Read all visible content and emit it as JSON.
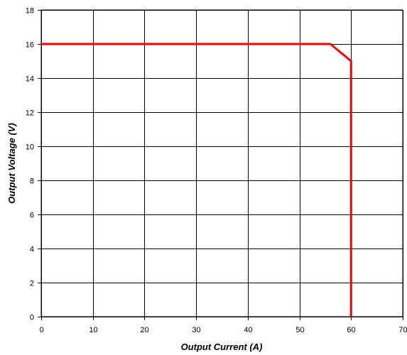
{
  "chart_data": {
    "type": "line",
    "title": "",
    "xlabel": "Output Current (A)",
    "ylabel": "Output Voltage (V)",
    "xlim": [
      0,
      70
    ],
    "ylim": [
      0,
      18
    ],
    "x_ticks": [
      0,
      10,
      20,
      30,
      40,
      50,
      60,
      70
    ],
    "y_ticks": [
      0,
      2,
      4,
      6,
      8,
      10,
      12,
      14,
      16,
      18
    ],
    "grid": true,
    "legend": "none",
    "series": [
      {
        "color": "#ff0000",
        "points": [
          [
            0,
            16
          ],
          [
            56,
            16
          ],
          [
            60,
            15
          ],
          [
            60,
            0
          ]
        ]
      }
    ]
  }
}
